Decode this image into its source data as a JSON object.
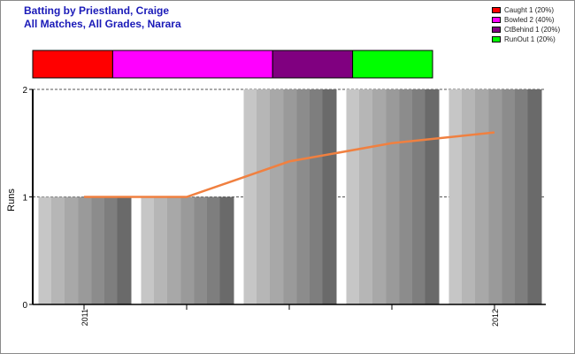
{
  "chart_data": {
    "type": "bar",
    "title_lines": [
      "Batting by Priestland, Craige",
      "All Matches, All Grades, Narara"
    ],
    "ylabel": "Runs",
    "ylim": [
      0,
      2
    ],
    "yticks": [
      0,
      1,
      2
    ],
    "x_tick_labels": [
      {
        "label": "2011",
        "bar_index": 0
      },
      {
        "label": "2012",
        "bar_index": 4
      }
    ],
    "series": [
      {
        "name": "Runs",
        "type": "bar",
        "values": [
          1,
          1,
          2,
          2,
          2
        ],
        "color": "#a0a0a0"
      },
      {
        "type": "line",
        "values": [
          1,
          1,
          1.33,
          1.5,
          1.6
        ],
        "color": "#f08040"
      }
    ],
    "dismissals": [
      {
        "label": "Caught 1 (20%)",
        "count": 1,
        "color": "#ff0000"
      },
      {
        "label": "Bowled 2 (40%)",
        "count": 2,
        "color": "#ff00ff"
      },
      {
        "label": "CtBehind 1 (20%)",
        "count": 1,
        "color": "#800080"
      },
      {
        "label": "RunOut 1 (20%)",
        "count": 1,
        "color": "#00ff00"
      }
    ],
    "grid": true,
    "legend_position": "top-right"
  }
}
